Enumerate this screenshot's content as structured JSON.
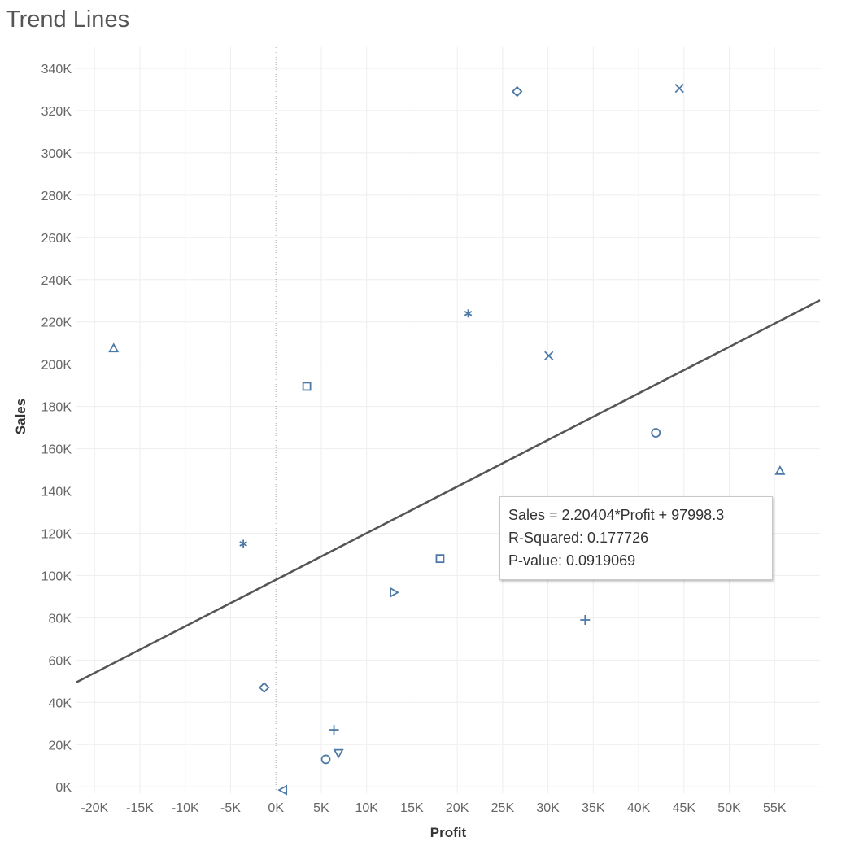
{
  "title": "Trend Lines",
  "chart_data": {
    "type": "scatter",
    "title": "Trend Lines",
    "xlabel": "Profit",
    "ylabel": "Sales",
    "xlim": [
      -22000,
      60000
    ],
    "ylim": [
      -3000,
      350000
    ],
    "xticks": [
      -20000,
      -15000,
      -10000,
      -5000,
      0,
      5000,
      10000,
      15000,
      20000,
      25000,
      30000,
      35000,
      40000,
      45000,
      50000,
      55000
    ],
    "xtick_labels": [
      "-20K",
      "-15K",
      "-10K",
      "-5K",
      "0K",
      "5K",
      "10K",
      "15K",
      "20K",
      "25K",
      "30K",
      "35K",
      "40K",
      "45K",
      "50K",
      "55K"
    ],
    "yticks": [
      0,
      20000,
      40000,
      60000,
      80000,
      100000,
      120000,
      140000,
      160000,
      180000,
      200000,
      220000,
      240000,
      260000,
      280000,
      300000,
      320000,
      340000
    ],
    "ytick_labels": [
      "0K",
      "20K",
      "40K",
      "60K",
      "80K",
      "100K",
      "120K",
      "140K",
      "160K",
      "180K",
      "200K",
      "220K",
      "240K",
      "260K",
      "280K",
      "300K",
      "320K",
      "340K"
    ],
    "grid": true,
    "points": [
      {
        "x": 26600,
        "y": 329000,
        "shape": "diamond"
      },
      {
        "x": 44500,
        "y": 330500,
        "shape": "x"
      },
      {
        "x": 21200,
        "y": 224000,
        "shape": "asterisk"
      },
      {
        "x": -17900,
        "y": 207500,
        "shape": "triangle-up"
      },
      {
        "x": 30100,
        "y": 204000,
        "shape": "x"
      },
      {
        "x": 3400,
        "y": 189500,
        "shape": "square"
      },
      {
        "x": 41900,
        "y": 167500,
        "shape": "circle"
      },
      {
        "x": 55600,
        "y": 149500,
        "shape": "triangle-up"
      },
      {
        "x": -3600,
        "y": 115000,
        "shape": "asterisk"
      },
      {
        "x": 18100,
        "y": 108000,
        "shape": "square"
      },
      {
        "x": 13000,
        "y": 92000,
        "shape": "triangle-right"
      },
      {
        "x": 34100,
        "y": 79000,
        "shape": "plus"
      },
      {
        "x": -1300,
        "y": 47000,
        "shape": "diamond"
      },
      {
        "x": 6400,
        "y": 27000,
        "shape": "plus"
      },
      {
        "x": 6900,
        "y": 16000,
        "shape": "triangle-down"
      },
      {
        "x": 5500,
        "y": 13000,
        "shape": "circle"
      },
      {
        "x": 800,
        "y": -1500,
        "shape": "triangle-left"
      }
    ],
    "trend": {
      "slope": 2.20404,
      "intercept": 97998.3,
      "equation": "Sales = 2.20404*Profit + 97998.3",
      "r_squared": "R-Squared: 0.177726",
      "p_value": "P-value: 0.0919069"
    },
    "colors": {
      "marker": "#4e79a7",
      "trend_line": "#555555",
      "grid": "#eeeeee",
      "tick_text": "#666666",
      "axis_title": "#333333"
    }
  }
}
